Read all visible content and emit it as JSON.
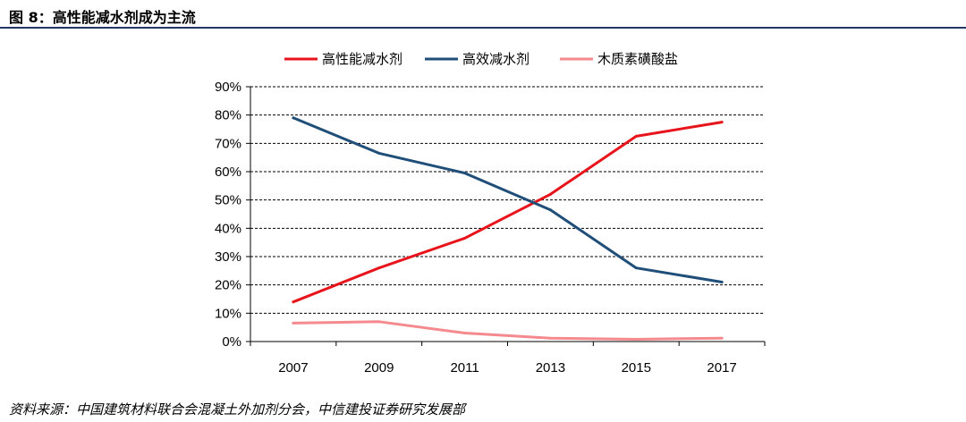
{
  "figure": {
    "title": "图 8：高性能减水剂成为主流",
    "source": "资料来源：中国建筑材料联合会混凝土外加剂分会，中信建投证券研究发展部"
  },
  "chart_data": {
    "type": "line",
    "x": [
      "2007",
      "2009",
      "2011",
      "2013",
      "2015",
      "2017"
    ],
    "yticks": [
      "0%",
      "10%",
      "20%",
      "30%",
      "40%",
      "50%",
      "60%",
      "70%",
      "80%",
      "90%"
    ],
    "ylim": [
      0,
      90
    ],
    "grid": "dashed horizontal",
    "legend_position": "top",
    "series": [
      {
        "name": "高性能减水剂",
        "color": "#e8141b",
        "values": [
          14,
          26,
          36.5,
          52,
          72.5,
          77.5
        ]
      },
      {
        "name": "高效减水剂",
        "color": "#1f4e79",
        "values": [
          79,
          66.5,
          59.5,
          46.5,
          26,
          21
        ]
      },
      {
        "name": "木质素磺酸盐",
        "color": "#f4898e",
        "values": [
          6.5,
          7,
          3,
          1.2,
          0.8,
          1.2
        ]
      }
    ]
  }
}
